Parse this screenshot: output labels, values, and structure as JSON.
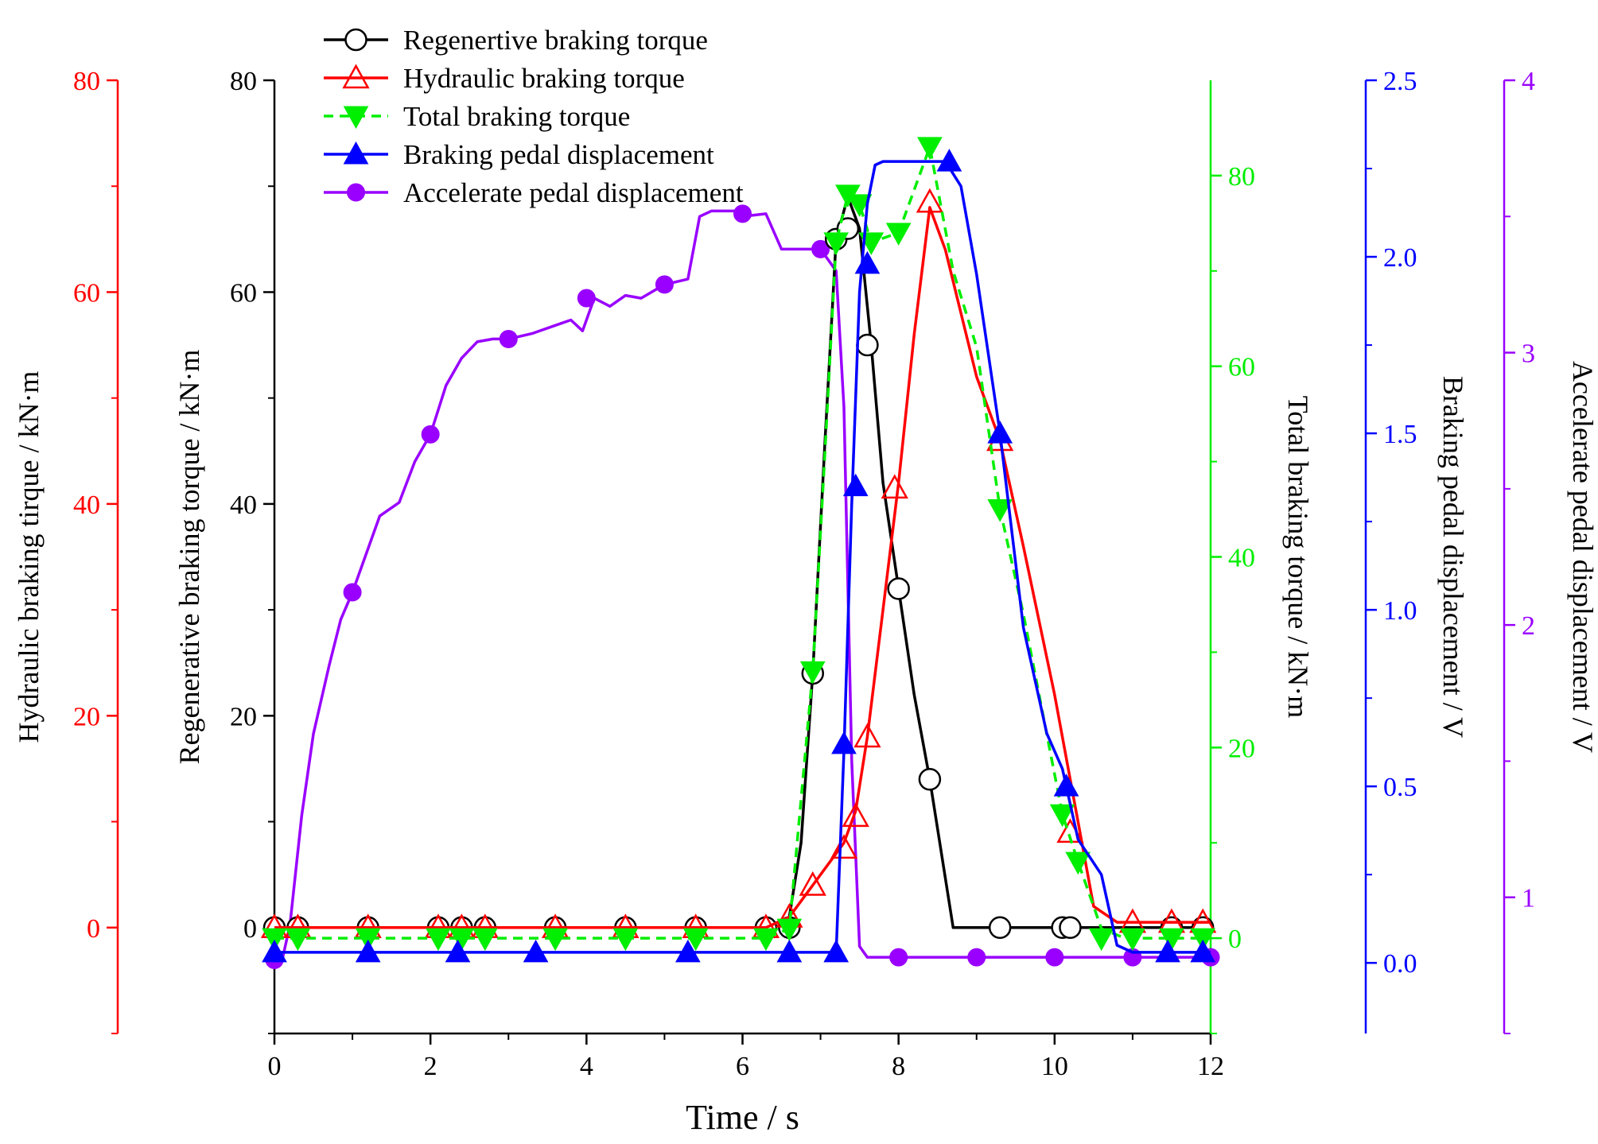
{
  "chart_data": {
    "type": "line",
    "xlabel": "Time / s",
    "xlim": [
      0,
      12
    ],
    "xticks": [
      0,
      2,
      4,
      6,
      8,
      10,
      12
    ],
    "axes": {
      "regen": {
        "label": "Regenerative braking torque  / kN·m",
        "color": "#000000",
        "min": -10,
        "max": 80,
        "ticks": [
          0,
          20,
          40,
          60,
          80
        ]
      },
      "hydraulic": {
        "label": "Hydraulic braking tirque  / kN·m",
        "color": "#ff0000",
        "min": -10,
        "max": 80,
        "ticks": [
          0,
          20,
          40,
          60,
          80
        ]
      },
      "total": {
        "label": "Total braking torque  / kN·m",
        "color": "#00ee00",
        "min": -10,
        "max": 90,
        "ticks": [
          0,
          20,
          40,
          60,
          80
        ]
      },
      "brake_pedal": {
        "label": "Braking pedal displacement  / V",
        "color": "#0000ff",
        "min": -0.2,
        "max": 2.5,
        "ticks": [
          "0.0",
          "0.5",
          "1.0",
          "1.5",
          "2.0",
          "2.5"
        ]
      },
      "accel_pedal": {
        "label": "Accelerate pedal displacement  / V",
        "color": "#9900ff",
        "min": 0.5,
        "max": 4,
        "ticks": [
          1,
          2,
          3,
          4
        ]
      }
    },
    "series": [
      {
        "name": "Regenertive braking torque",
        "axis": "regen",
        "color": "#000000",
        "marker": "open-circle",
        "dashed": false,
        "x": [
          0,
          0.3,
          1.2,
          2.1,
          2.4,
          2.7,
          3.6,
          4.5,
          5.4,
          6.3,
          6.6,
          6.75,
          6.9,
          7.05,
          7.2,
          7.35,
          7.5,
          7.65,
          7.8,
          8.0,
          8.2,
          8.4,
          8.7,
          9.3,
          10.1,
          10.2,
          11.0,
          12.0
        ],
        "y": [
          0,
          0,
          0,
          0,
          0,
          0,
          0,
          0,
          0,
          0,
          1,
          8,
          24,
          45,
          65,
          69,
          66,
          55,
          42,
          32,
          22,
          14,
          0,
          0,
          0,
          0,
          0,
          0
        ],
        "marker_x": [
          0,
          0.3,
          1.2,
          2.1,
          2.4,
          2.7,
          3.6,
          4.5,
          5.4,
          6.3,
          6.6,
          6.9,
          7.2,
          7.35,
          7.6,
          8.0,
          8.4,
          9.3,
          10.1,
          10.2,
          11.5,
          11.9
        ],
        "marker_y": [
          0,
          0,
          0,
          0,
          0,
          0,
          0,
          0,
          0,
          0,
          0,
          24,
          65,
          66,
          55,
          32,
          14,
          0,
          0,
          0,
          0,
          0
        ]
      },
      {
        "name": "Hydraulic braking torque",
        "axis": "hydraulic",
        "color": "#ff0000",
        "marker": "open-triangle",
        "dashed": false,
        "x": [
          0,
          0.3,
          1.2,
          2.1,
          2.4,
          2.7,
          3.6,
          4.5,
          5.4,
          6.3,
          6.6,
          6.9,
          7.1,
          7.3,
          7.45,
          7.6,
          7.8,
          8.0,
          8.2,
          8.4,
          8.6,
          9.0,
          9.3,
          9.6,
          10.0,
          10.3,
          10.5,
          10.8,
          11.0,
          12.0
        ],
        "y": [
          0,
          0,
          0,
          0,
          0,
          0,
          0,
          0,
          0,
          0,
          1,
          4,
          6,
          8,
          11,
          18,
          30,
          42,
          56,
          68,
          64,
          52,
          46,
          36,
          22,
          10,
          2,
          0.5,
          0.5,
          0.5
        ],
        "marker_x": [
          0,
          0.3,
          1.2,
          2.1,
          2.4,
          2.7,
          3.6,
          4.5,
          5.4,
          6.3,
          6.6,
          6.9,
          7.3,
          7.45,
          7.6,
          7.95,
          8.4,
          9.3,
          10.2,
          11.0,
          11.5,
          11.9
        ],
        "marker_y": [
          0,
          0,
          0,
          0,
          0,
          0,
          0,
          0,
          0,
          0,
          1,
          4,
          7.5,
          10.5,
          18,
          41.5,
          68.5,
          46,
          9,
          0.5,
          0.5,
          0.5
        ]
      },
      {
        "name": "Total braking torque",
        "axis": "total",
        "color": "#00ee00",
        "marker": "filled-down-triangle",
        "dashed": true,
        "x": [
          0,
          0.3,
          1.2,
          2.1,
          2.4,
          2.7,
          3.6,
          4.5,
          5.4,
          6.3,
          6.6,
          6.9,
          7.05,
          7.2,
          7.35,
          7.5,
          7.65,
          8.0,
          8.4,
          8.7,
          9.0,
          9.3,
          9.6,
          10.1,
          10.3,
          10.6,
          10.9,
          11.5,
          12.0
        ],
        "y": [
          0,
          0,
          0,
          0,
          0,
          0,
          0,
          0,
          0,
          0,
          1,
          28,
          50,
          73,
          78,
          77,
          73,
          74,
          83,
          70,
          62,
          45,
          34,
          13,
          8,
          1,
          0,
          0,
          0
        ],
        "marker_x": [
          0,
          0.3,
          1.2,
          2.1,
          2.4,
          2.7,
          3.6,
          4.5,
          5.4,
          6.3,
          6.6,
          6.9,
          7.2,
          7.35,
          7.5,
          7.65,
          8.0,
          8.4,
          9.3,
          10.1,
          10.3,
          10.6,
          11.0,
          11.5,
          11.9
        ],
        "marker_y": [
          0,
          0,
          0,
          0,
          0,
          0,
          0,
          0,
          0,
          0,
          1,
          28,
          73,
          78,
          77,
          73,
          74,
          83,
          45,
          13,
          8,
          0,
          0,
          0,
          0
        ]
      },
      {
        "name": "Braking pedal displacement",
        "axis": "brake_pedal",
        "color": "#0000ff",
        "marker": "filled-up-triangle",
        "dashed": false,
        "x": [
          0,
          1.2,
          2.4,
          3.4,
          5.3,
          6.6,
          7.2,
          7.3,
          7.4,
          7.5,
          7.6,
          7.7,
          7.8,
          8.6,
          8.8,
          9.0,
          9.3,
          9.6,
          9.9,
          10.1,
          10.3,
          10.6,
          10.8,
          11.0,
          12.0
        ],
        "y": [
          0.03,
          0.03,
          0.03,
          0.03,
          0.03,
          0.03,
          0.03,
          0.6,
          1.3,
          1.9,
          2.15,
          2.26,
          2.27,
          2.27,
          2.2,
          1.95,
          1.5,
          0.95,
          0.65,
          0.55,
          0.35,
          0.25,
          0.05,
          0.03,
          0.03
        ],
        "marker_x": [
          0,
          1.2,
          2.35,
          3.35,
          5.3,
          6.6,
          7.2,
          7.3,
          7.45,
          7.6,
          8.65,
          9.3,
          10.15,
          11.45,
          11.9
        ],
        "marker_y": [
          0.03,
          0.03,
          0.03,
          0.03,
          0.03,
          0.03,
          0.03,
          0.62,
          1.35,
          1.98,
          2.27,
          1.5,
          0.5,
          0.03,
          0.03
        ]
      },
      {
        "name": "Accelerate pedal displacement",
        "axis": "accel_pedal",
        "color": "#9900ff",
        "marker": "filled-circle",
        "dashed": false,
        "x": [
          0,
          0.1,
          0.2,
          0.35,
          0.5,
          0.7,
          0.85,
          1.0,
          1.2,
          1.35,
          1.6,
          1.8,
          2.0,
          2.2,
          2.4,
          2.6,
          2.8,
          3.0,
          3.3,
          3.6,
          3.8,
          3.95,
          4.1,
          4.3,
          4.5,
          4.7,
          5.0,
          5.3,
          5.45,
          5.6,
          5.9,
          6.0,
          6.3,
          6.5,
          6.8,
          7.0,
          7.2,
          7.3,
          7.4,
          7.5,
          7.6,
          8.0,
          9.0,
          10.0,
          11.0,
          12.0
        ],
        "y": [
          0.77,
          0.77,
          0.9,
          1.3,
          1.6,
          1.85,
          2.02,
          2.12,
          2.28,
          2.4,
          2.45,
          2.6,
          2.7,
          2.88,
          2.98,
          3.04,
          3.05,
          3.05,
          3.07,
          3.1,
          3.12,
          3.08,
          3.2,
          3.17,
          3.21,
          3.2,
          3.25,
          3.27,
          3.5,
          3.52,
          3.52,
          3.5,
          3.51,
          3.38,
          3.38,
          3.38,
          3.3,
          2.8,
          1.5,
          0.82,
          0.78,
          0.78,
          0.78,
          0.78,
          0.78,
          0.78
        ],
        "marker_x": [
          0,
          1.0,
          2.0,
          3.0,
          4.0,
          5.0,
          6.0,
          7.0,
          8.0,
          9.0,
          10.0,
          11.0,
          12.0
        ],
        "marker_y": [
          0.77,
          2.12,
          2.7,
          3.05,
          3.2,
          3.25,
          3.51,
          3.38,
          0.78,
          0.78,
          0.78,
          0.78,
          0.78
        ]
      }
    ]
  }
}
